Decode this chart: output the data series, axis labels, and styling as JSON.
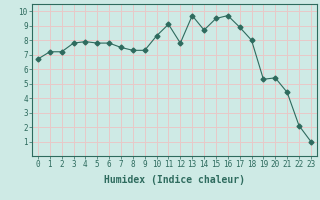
{
  "x": [
    0,
    1,
    2,
    3,
    4,
    5,
    6,
    7,
    8,
    9,
    10,
    11,
    12,
    13,
    14,
    15,
    16,
    17,
    18,
    19,
    20,
    21,
    22,
    23
  ],
  "y": [
    6.7,
    7.2,
    7.2,
    7.8,
    7.9,
    7.8,
    7.8,
    7.5,
    7.3,
    7.3,
    8.3,
    9.1,
    7.8,
    9.7,
    8.7,
    9.5,
    9.7,
    8.9,
    8.0,
    5.3,
    5.4,
    4.4,
    2.1,
    1.0
  ],
  "line_color": "#2e6b5e",
  "marker": "D",
  "marker_size": 2.5,
  "bg_color": "#ceeae5",
  "grid_color": "#e8c8c8",
  "xlabel": "Humidex (Indice chaleur)",
  "xlim": [
    -0.5,
    23.5
  ],
  "ylim": [
    0,
    10.5
  ],
  "yticks": [
    1,
    2,
    3,
    4,
    5,
    6,
    7,
    8,
    9,
    10
  ],
  "xticks": [
    0,
    1,
    2,
    3,
    4,
    5,
    6,
    7,
    8,
    9,
    10,
    11,
    12,
    13,
    14,
    15,
    16,
    17,
    18,
    19,
    20,
    21,
    22,
    23
  ],
  "tick_color": "#2e6b5e",
  "label_fontsize": 5.5,
  "xlabel_fontsize": 7,
  "xlabel_fontweight": "bold"
}
